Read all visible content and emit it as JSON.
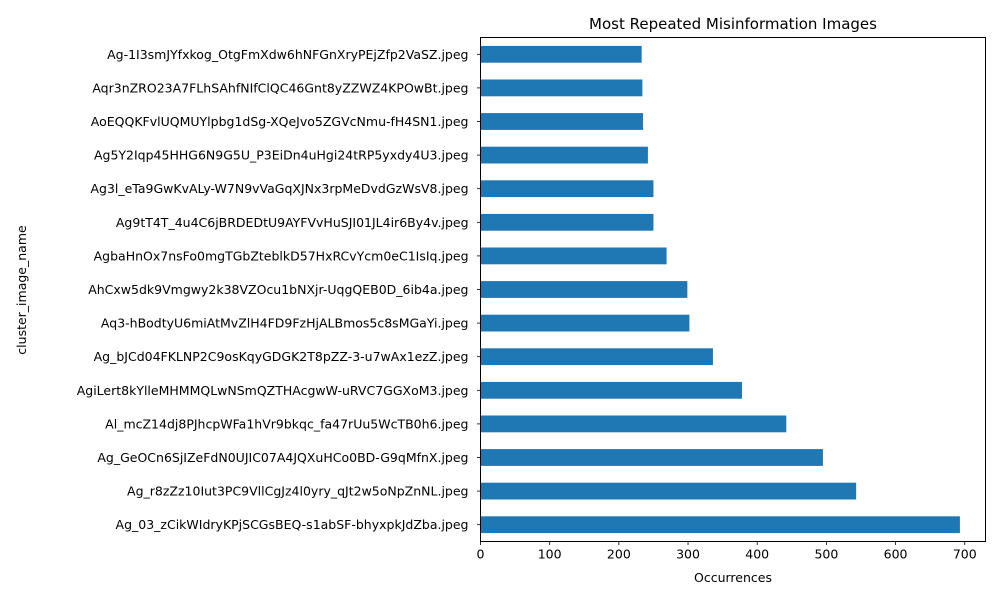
{
  "chart_data": {
    "type": "bar",
    "orientation": "horizontal",
    "title": "Most Repeated Misinformation Images",
    "xlabel": "Occurrences",
    "ylabel": "cluster_image_name",
    "xlim": [
      0,
      730
    ],
    "xticks": [
      0,
      100,
      200,
      300,
      400,
      500,
      600,
      700
    ],
    "grid": false,
    "bar_color": "#1f77b4",
    "categories": [
      "Ag_03_zCikWIdryKPjSCGsBEQ-s1abSF-bhyxpkJdZba.jpeg",
      "Ag_r8zZz10Iut3PC9VllCgJz4l0yry_qJt2w5oNpZnNL.jpeg",
      "Ag_GeOCn6SjIZeFdN0UJIC07A4JQXuHCo0BD-G9qMfnX.jpeg",
      "Al_mcZ14dj8PJhcpWFa1hVr9bkqc_fa47rUu5WcTB0h6.jpeg",
      "AgiLert8kYlleMHMMQLwNSmQZTHAcgwW-uRVC7GGXoM3.jpeg",
      "Ag_bJCd04FKLNP2C9osKqyGDGK2T8pZZ-3-u7wAx1ezZ.jpeg",
      "Aq3-hBodtyU6miAtMvZlH4FD9FzHjALBmos5c8sMGaYi.jpeg",
      "AhCxw5dk9Vmgwy2k38VZOcu1bNXjr-UqgQEB0D_6ib4a.jpeg",
      "AgbaHnOx7nsFo0mgTGbZteblkD57HxRCvYcm0eC1IsIq.jpeg",
      "Ag9tT4T_4u4C6jBRDEDtU9AYFVvHuSJI01JL4ir6By4v.jpeg",
      "Ag3l_eTa9GwKvALy-W7N9vVaGqXJNx3rpMeDvdGzWsV8.jpeg",
      "Ag5Y2Iqp45HHG6N9G5U_P3EiDn4uHgi24tRP5yxdy4U3.jpeg",
      "AoEQQKFvlUQMUYlpbg1dSg-XQeJvo5ZGVcNmu-fH4SN1.jpeg",
      "Aqr3nZRO23A7FLhSAhfNIfClQC46Gnt8yZZWZ4KPOwBt.jpeg",
      "Ag-1I3smJYfxkog_OtgFmXdw6hNFGnXryPEjZfp2VaSZ.jpeg"
    ],
    "values": [
      693,
      543,
      495,
      442,
      378,
      336,
      302,
      299,
      269,
      250,
      250,
      242,
      235,
      234,
      233
    ]
  }
}
